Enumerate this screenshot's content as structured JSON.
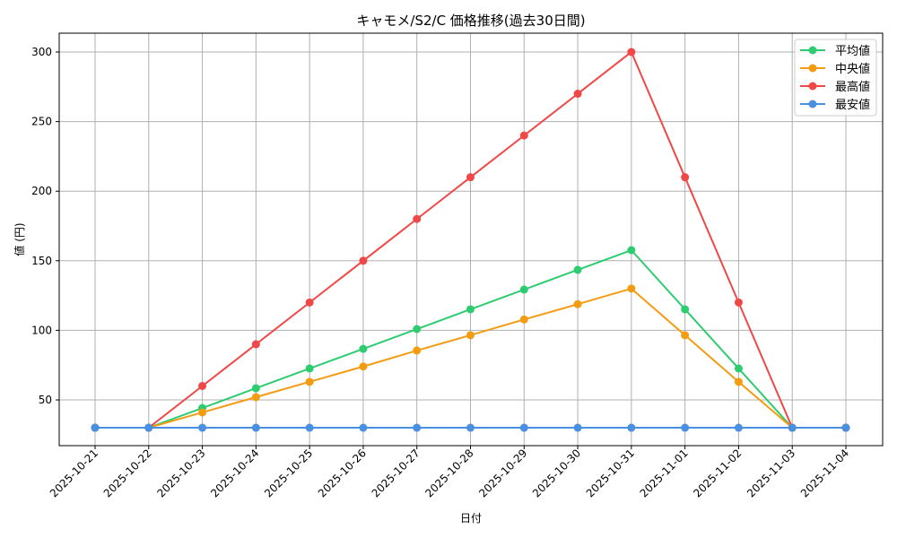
{
  "chart_data": {
    "type": "line",
    "title": "キャモメ/S2/C 価格推移(過去30日間)",
    "xlabel": "日付",
    "ylabel": "値 (円)",
    "ylim": [
      16,
      313
    ],
    "yticks": [
      50,
      100,
      150,
      200,
      250,
      300
    ],
    "grid": true,
    "legend_position": "upper right",
    "x": [
      "2025-10-21",
      "2025-10-22",
      "2025-10-23",
      "2025-10-24",
      "2025-10-25",
      "2025-10-26",
      "2025-10-27",
      "2025-10-28",
      "2025-10-29",
      "2025-10-30",
      "2025-10-31",
      "2025-11-01",
      "2025-11-02",
      "2025-11-03",
      "2025-11-04"
    ],
    "series": [
      {
        "name": "平均値",
        "color": "#2ecc71",
        "values": [
          30,
          30,
          44.2,
          58.4,
          72.6,
          86.7,
          100.9,
          115.1,
          129.3,
          143.5,
          157.6,
          115.1,
          72.6,
          30,
          30
        ]
      },
      {
        "name": "中央値",
        "color": "#f39c12",
        "values": [
          30,
          30,
          41,
          52,
          63,
          74,
          85.5,
          96.5,
          107.8,
          118.8,
          130,
          96.5,
          63,
          30,
          30
        ]
      },
      {
        "name": "最高値",
        "color": "#f04747",
        "values": [
          30,
          30,
          60,
          90,
          120,
          150,
          180,
          210,
          240,
          270,
          300,
          210,
          120,
          30,
          30
        ]
      },
      {
        "name": "最安値",
        "color": "#4a90e2",
        "values": [
          30,
          30,
          30,
          30,
          30,
          30,
          30,
          30,
          30,
          30,
          30,
          30,
          30,
          30,
          30
        ]
      }
    ]
  }
}
